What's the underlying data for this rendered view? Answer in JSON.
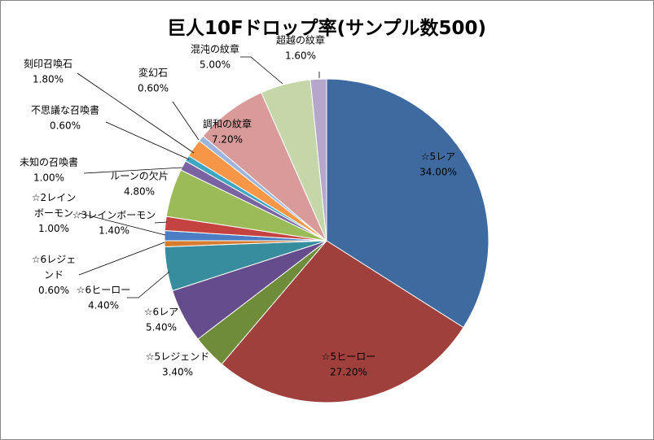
{
  "chart_data": {
    "type": "pie",
    "title": "巨人10Fドロップ率(サンプル数500)",
    "slices": [
      {
        "name": "☆5レア",
        "value": 34.0,
        "label": "34.00%",
        "color": "#3f6aa0"
      },
      {
        "name": "☆5ヒーロー",
        "value": 27.2,
        "label": "27.20%",
        "color": "#a0403d"
      },
      {
        "name": "☆5レジェンド",
        "value": 3.4,
        "label": "3.40%",
        "color": "#6f8c3b"
      },
      {
        "name": "☆6レア",
        "value": 5.4,
        "label": "5.40%",
        "color": "#654c8c"
      },
      {
        "name": "☆6ヒーロー",
        "value": 4.4,
        "label": "4.40%",
        "color": "#378d9d"
      },
      {
        "name": "☆6レジェンド",
        "value": 0.6,
        "label": "0.60%",
        "color": "#d77b2f"
      },
      {
        "name": "☆2レインボーモン",
        "value": 1.0,
        "label": "1.00%",
        "color": "#4a7dc2"
      },
      {
        "name": "☆3レインボーモン",
        "value": 1.4,
        "label": "1.40%",
        "color": "#c4423f"
      },
      {
        "name": "ルーンの欠片",
        "value": 4.8,
        "label": "4.80%",
        "color": "#9bbb59"
      },
      {
        "name": "未知の召喚書",
        "value": 1.0,
        "label": "1.00%",
        "color": "#7a63a1"
      },
      {
        "name": "不思議な召喚書",
        "value": 0.6,
        "label": "0.60%",
        "color": "#3fa6c1"
      },
      {
        "name": "刻印召喚石",
        "value": 1.8,
        "label": "1.80%",
        "color": "#f79646"
      },
      {
        "name": "変幻石",
        "value": 0.6,
        "label": "0.60%",
        "color": "#9db4dd"
      },
      {
        "name": "調和の紋章",
        "value": 7.2,
        "label": "7.20%",
        "color": "#d99b9a"
      },
      {
        "name": "混沌の紋章",
        "value": 5.0,
        "label": "5.00%",
        "color": "#c5d7a9"
      },
      {
        "name": "超越の紋章",
        "value": 1.6,
        "label": "1.60%",
        "color": "#b4a7cb"
      }
    ],
    "start_angle": "12 o'clock",
    "direction": "clockwise",
    "legend": "none",
    "data_labels": "category name and percent"
  }
}
